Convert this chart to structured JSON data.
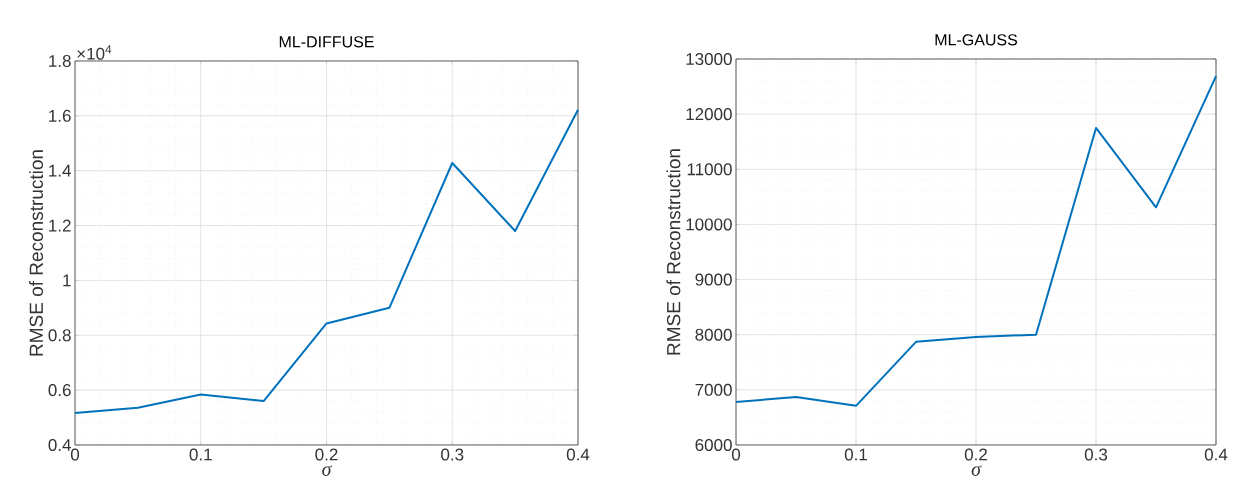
{
  "chart_data": [
    {
      "type": "line",
      "title": "ML-DIFFUSE",
      "xlabel": "σ",
      "ylabel": "RMSE of Reconstruction",
      "x": [
        0,
        0.05,
        0.1,
        0.15,
        0.2,
        0.25,
        0.3,
        0.35,
        0.4
      ],
      "series": [
        {
          "color": "#0072bd",
          "values": [
            0.517,
            0.536,
            0.584,
            0.56,
            0.843,
            0.9,
            1.428,
            1.18,
            1.622
          ]
        }
      ],
      "xlim": [
        0,
        0.4
      ],
      "xticks": [
        0,
        0.1,
        0.2,
        0.3,
        0.4
      ],
      "ylim": [
        0.4,
        1.8
      ],
      "yticks": [
        0.4,
        0.6,
        0.8,
        1,
        1.2,
        1.4,
        1.6,
        1.8
      ],
      "annotations": [
        "×10$^{4}$"
      ],
      "grid": true,
      "line_style": "solid"
    },
    {
      "type": "line",
      "title": "ML-GAUSS",
      "xlabel": "σ",
      "ylabel": "RMSE of Reconstruction",
      "x": [
        0,
        0.05,
        0.1,
        0.15,
        0.2,
        0.25,
        0.3,
        0.35,
        0.4
      ],
      "series": [
        {
          "color": "#0072bd",
          "values": [
            6780,
            6870,
            6710,
            7870,
            7960,
            8000,
            11750,
            10310,
            12690
          ]
        }
      ],
      "xlim": [
        0,
        0.4
      ],
      "xticks": [
        0,
        0.1,
        0.2,
        0.3,
        0.4
      ],
      "ylim": [
        6000,
        13000
      ],
      "yticks": [
        6000,
        7000,
        8000,
        9000,
        10000,
        11000,
        12000,
        13000
      ],
      "grid": true,
      "line_style": "solid"
    }
  ]
}
